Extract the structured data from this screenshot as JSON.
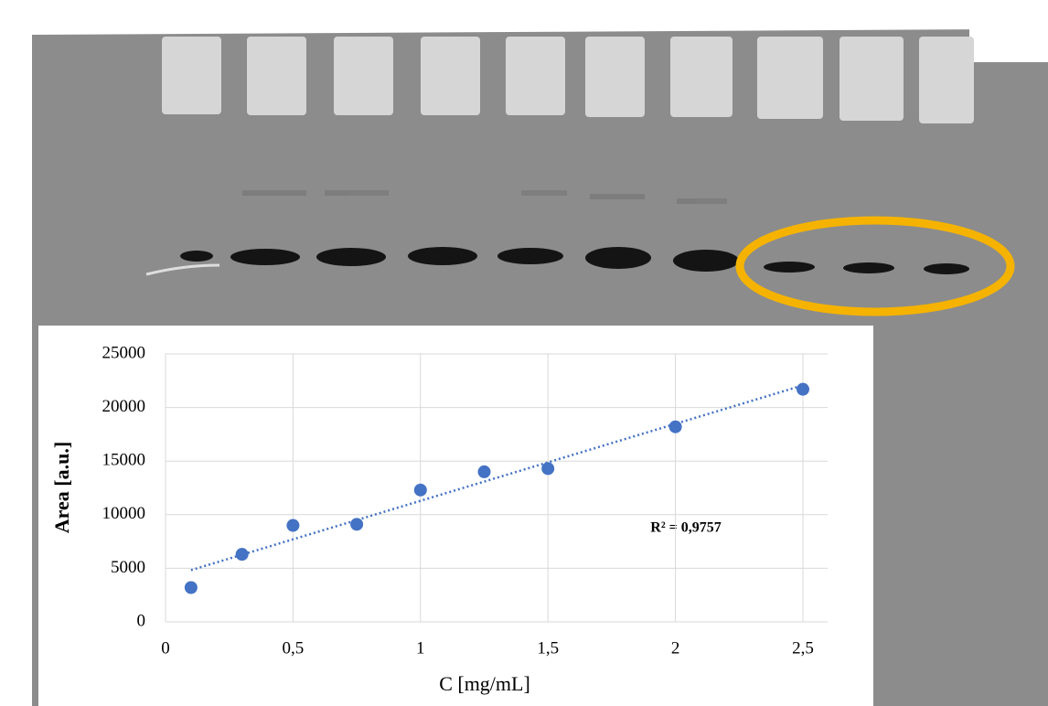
{
  "chart_data": {
    "type": "scatter",
    "x": [
      0.1,
      0.3,
      0.5,
      0.75,
      1,
      1.25,
      1.5,
      2,
      2.5
    ],
    "values": [
      3200,
      6300,
      9000,
      9100,
      12300,
      14000,
      14300,
      18200,
      21700
    ],
    "color": "#4472c4",
    "x_label": "C [mg/mL]",
    "y_label": "Area [a.u.]",
    "annotation": "R² = 0,9757",
    "trendline": "linear",
    "xlim": [
      0,
      2.5
    ],
    "xticks": [
      0,
      {
        "value": 0.5,
        "label": "0,5"
      },
      1,
      {
        "value": 1.5,
        "label": "1,5"
      },
      2,
      {
        "value": 2.5,
        "label": "2,5"
      }
    ],
    "ylim": [
      0,
      25000
    ],
    "yticks": [
      0,
      5000,
      10000,
      15000,
      20000,
      25000
    ],
    "grid": true
  }
}
